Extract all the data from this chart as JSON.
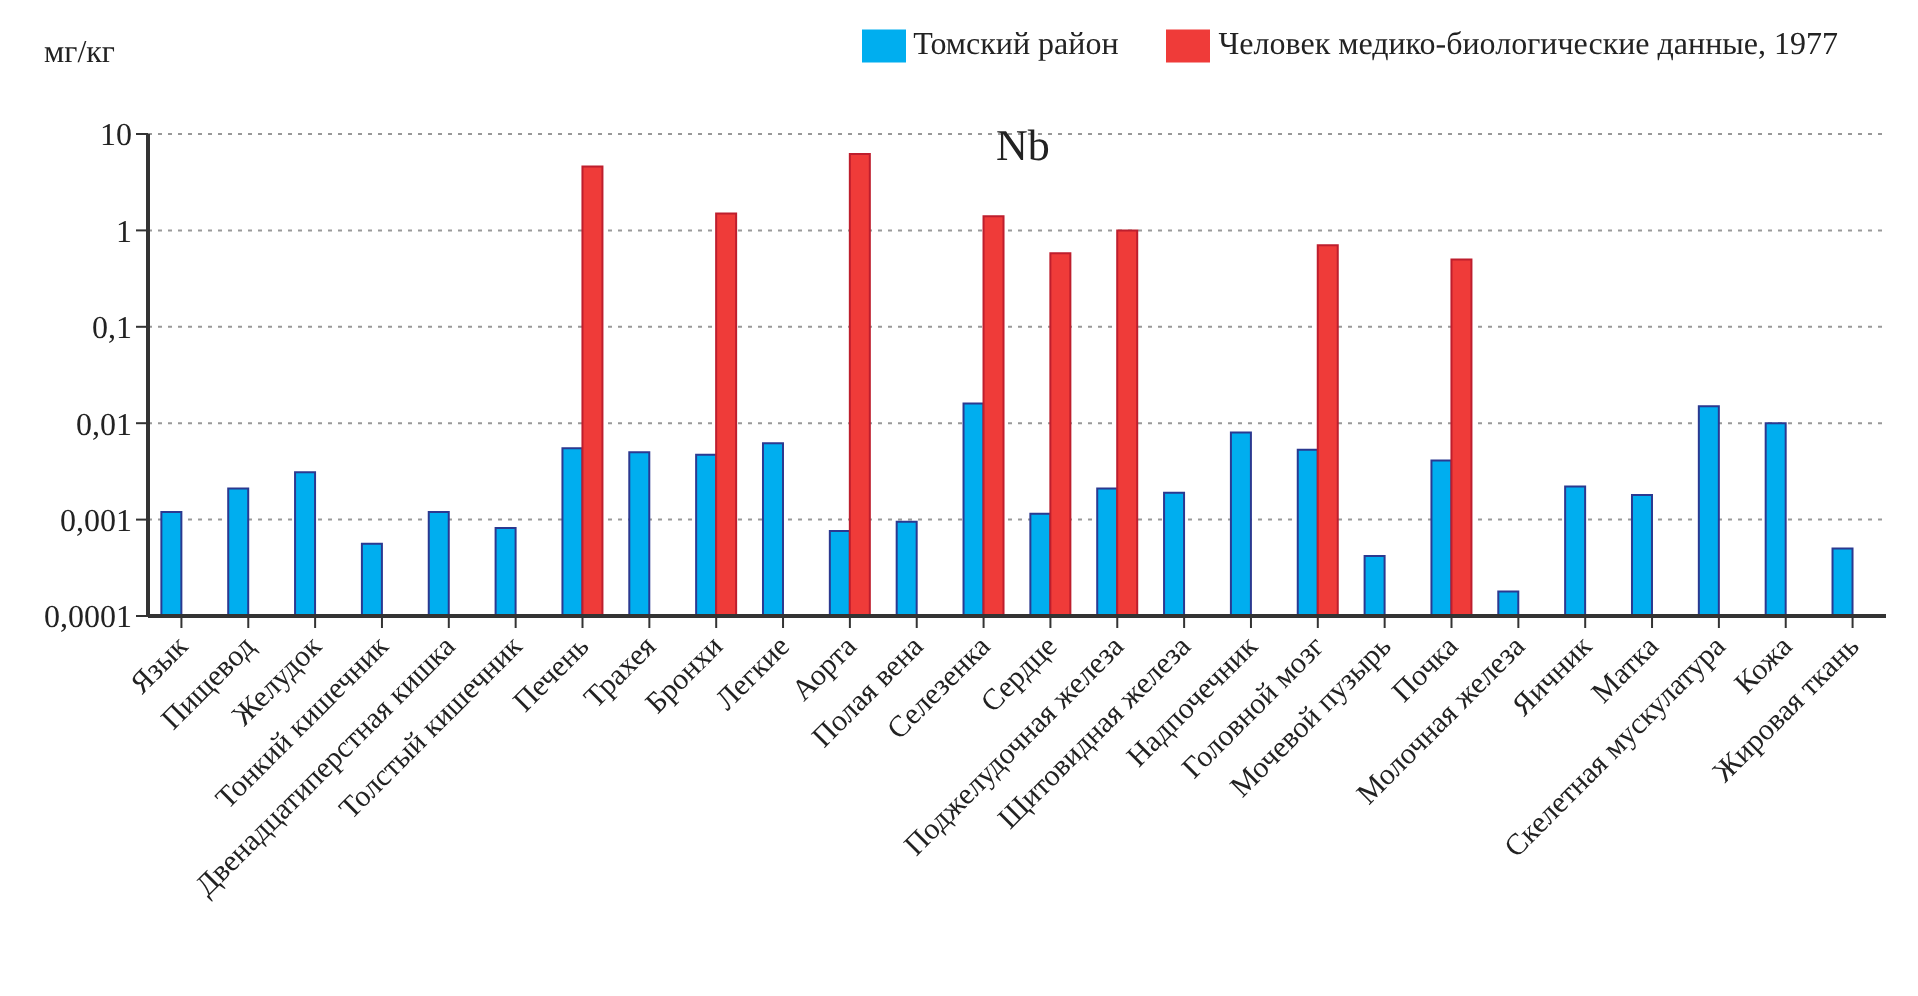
{
  "chart_data": {
    "type": "bar",
    "title": "Nb",
    "ylabel": "мг/кг",
    "categories": [
      "Язык",
      "Пищевод",
      "Желудок",
      "Тонкий кишечник",
      "Двенадцатиперстная кишка",
      "Толстый кишечник",
      "Печень",
      "Трахея",
      "Бронхи",
      "Легкие",
      "Аорта",
      "Полая вена",
      "Селезенка",
      "Сердце",
      "Поджелудочная железа",
      "Щитовидная железа",
      "Надпочечник",
      "Головной мозг",
      "Мочевой пузырь",
      "Почка",
      "Молочная железа",
      "Яичник",
      "Матка",
      "Скелетная мускулатура",
      "Кожа",
      "Жировая ткань"
    ],
    "series": [
      {
        "name": "Томский район",
        "color": "#00aeef",
        "values": [
          0.0012,
          0.0021,
          0.0031,
          0.00056,
          0.0012,
          0.00082,
          0.0055,
          0.005,
          0.0047,
          0.0062,
          0.00076,
          0.00095,
          0.016,
          0.00115,
          0.0021,
          0.0019,
          0.008,
          0.0053,
          0.00042,
          0.0041,
          0.00018,
          0.0022,
          0.0018,
          0.015,
          0.01,
          0.0005
        ]
      },
      {
        "name": "Человек медико-биологические данные, 1977",
        "color": "#ef3b39",
        "values": [
          null,
          null,
          null,
          null,
          null,
          null,
          4.6,
          null,
          1.5,
          null,
          6.2,
          null,
          1.4,
          0.58,
          1.0,
          null,
          null,
          0.7,
          null,
          0.5,
          null,
          null,
          null,
          null,
          null,
          null
        ]
      }
    ],
    "log": true,
    "ylim": [
      0.0001,
      10
    ],
    "yticks": [
      {
        "value": 0.0001,
        "label": "0,0001"
      },
      {
        "value": 0.001,
        "label": "0,001"
      },
      {
        "value": 0.01,
        "label": "0,01"
      },
      {
        "value": 0.1,
        "label": "0,1"
      },
      {
        "value": 1,
        "label": "1"
      },
      {
        "value": 10,
        "label": "10"
      }
    ],
    "grid": "y",
    "legend": "top right"
  }
}
